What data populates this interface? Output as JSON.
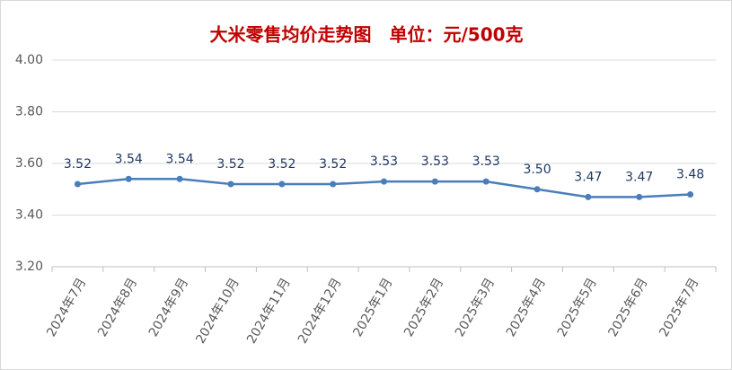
{
  "chart_data": {
    "type": "line",
    "title": "大米零售均价走势图　单位：元/500克",
    "categories": [
      "2024年7月",
      "2024年8月",
      "2024年9月",
      "2024年10月",
      "2024年11月",
      "2024年12月",
      "2025年1月",
      "2025年2月",
      "2025年3月",
      "2025年4月",
      "2025年5月",
      "2025年6月",
      "2025年7月"
    ],
    "series": [
      {
        "color": "#4a7ebb",
        "values": [
          3.52,
          3.54,
          3.54,
          3.52,
          3.52,
          3.52,
          3.53,
          3.53,
          3.53,
          3.5,
          3.47,
          3.47,
          3.48
        ],
        "value_labels": [
          "3.52",
          "3.54",
          "3.54",
          "3.52",
          "3.52",
          "3.52",
          "3.53",
          "3.53",
          "3.53",
          "3.50",
          "3.47",
          "3.47",
          "3.48"
        ]
      }
    ],
    "ylim": [
      3.2,
      4.0
    ],
    "yticks": [
      {
        "value": 3.2,
        "label": "3.20"
      },
      {
        "value": 3.4,
        "label": "3.40"
      },
      {
        "value": 3.6,
        "label": "3.60"
      },
      {
        "value": 3.8,
        "label": "3.80"
      },
      {
        "value": 4.0,
        "label": "4.00"
      }
    ],
    "grid": true
  }
}
